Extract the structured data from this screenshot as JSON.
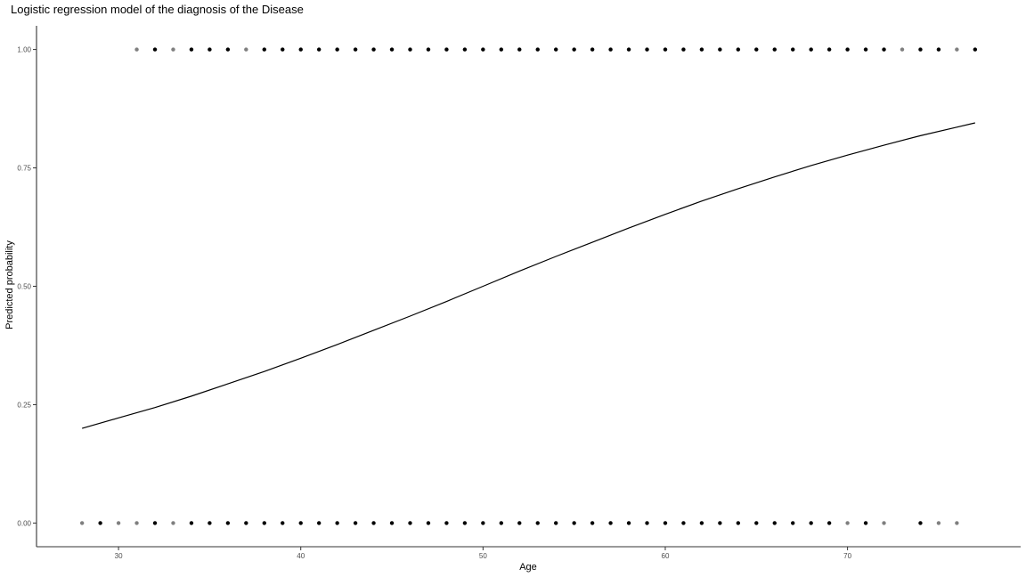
{
  "chart_data": {
    "type": "scatter",
    "title": "Logistic regression model of the diagnosis of the Disease",
    "xlabel": "Age",
    "ylabel": "Predicted probability",
    "xlim": [
      25.5,
      79.5
    ],
    "ylim": [
      -0.05,
      1.05
    ],
    "x_ticks": [
      30,
      40,
      50,
      60,
      70
    ],
    "y_ticks": [
      0,
      0.25,
      0.5,
      0.75,
      1.0
    ],
    "y_tick_labels": [
      "0.00",
      "0.25",
      "0.50",
      "0.75",
      "1.00"
    ],
    "grid": false,
    "legend": "none",
    "colors": {
      "points": "#000000",
      "curve": "#000000",
      "axis": "#333333"
    },
    "observed_points": {
      "y0": [
        {
          "x": 28,
          "alpha": 0.5
        },
        {
          "x": 29,
          "alpha": 1.0
        },
        {
          "x": 30,
          "alpha": 0.5
        },
        {
          "x": 31,
          "alpha": 0.5
        },
        {
          "x": 32,
          "alpha": 1.0
        },
        {
          "x": 33,
          "alpha": 0.5
        },
        {
          "x": 34,
          "alpha": 1.0
        },
        {
          "x": 35,
          "alpha": 1.0
        },
        {
          "x": 36,
          "alpha": 1.0
        },
        {
          "x": 37,
          "alpha": 1.0
        },
        {
          "x": 38,
          "alpha": 1.0
        },
        {
          "x": 39,
          "alpha": 1.0
        },
        {
          "x": 40,
          "alpha": 1.0
        },
        {
          "x": 41,
          "alpha": 1.0
        },
        {
          "x": 42,
          "alpha": 1.0
        },
        {
          "x": 43,
          "alpha": 1.0
        },
        {
          "x": 44,
          "alpha": 1.0
        },
        {
          "x": 45,
          "alpha": 1.0
        },
        {
          "x": 46,
          "alpha": 1.0
        },
        {
          "x": 47,
          "alpha": 1.0
        },
        {
          "x": 48,
          "alpha": 1.0
        },
        {
          "x": 49,
          "alpha": 1.0
        },
        {
          "x": 50,
          "alpha": 1.0
        },
        {
          "x": 51,
          "alpha": 1.0
        },
        {
          "x": 52,
          "alpha": 1.0
        },
        {
          "x": 53,
          "alpha": 1.0
        },
        {
          "x": 54,
          "alpha": 1.0
        },
        {
          "x": 55,
          "alpha": 1.0
        },
        {
          "x": 56,
          "alpha": 1.0
        },
        {
          "x": 57,
          "alpha": 1.0
        },
        {
          "x": 58,
          "alpha": 1.0
        },
        {
          "x": 59,
          "alpha": 1.0
        },
        {
          "x": 60,
          "alpha": 1.0
        },
        {
          "x": 61,
          "alpha": 1.0
        },
        {
          "x": 62,
          "alpha": 1.0
        },
        {
          "x": 63,
          "alpha": 1.0
        },
        {
          "x": 64,
          "alpha": 1.0
        },
        {
          "x": 65,
          "alpha": 1.0
        },
        {
          "x": 66,
          "alpha": 1.0
        },
        {
          "x": 67,
          "alpha": 1.0
        },
        {
          "x": 68,
          "alpha": 1.0
        },
        {
          "x": 69,
          "alpha": 1.0
        },
        {
          "x": 70,
          "alpha": 0.5
        },
        {
          "x": 71,
          "alpha": 1.0
        },
        {
          "x": 72,
          "alpha": 0.5
        },
        {
          "x": 74,
          "alpha": 1.0
        },
        {
          "x": 75,
          "alpha": 0.5
        },
        {
          "x": 76,
          "alpha": 0.5
        }
      ],
      "y1": [
        {
          "x": 31,
          "alpha": 0.5
        },
        {
          "x": 32,
          "alpha": 1.0
        },
        {
          "x": 33,
          "alpha": 0.5
        },
        {
          "x": 34,
          "alpha": 1.0
        },
        {
          "x": 35,
          "alpha": 1.0
        },
        {
          "x": 36,
          "alpha": 1.0
        },
        {
          "x": 37,
          "alpha": 0.5
        },
        {
          "x": 38,
          "alpha": 1.0
        },
        {
          "x": 39,
          "alpha": 1.0
        },
        {
          "x": 40,
          "alpha": 1.0
        },
        {
          "x": 41,
          "alpha": 1.0
        },
        {
          "x": 42,
          "alpha": 1.0
        },
        {
          "x": 43,
          "alpha": 1.0
        },
        {
          "x": 44,
          "alpha": 1.0
        },
        {
          "x": 45,
          "alpha": 1.0
        },
        {
          "x": 46,
          "alpha": 1.0
        },
        {
          "x": 47,
          "alpha": 1.0
        },
        {
          "x": 48,
          "alpha": 1.0
        },
        {
          "x": 49,
          "alpha": 1.0
        },
        {
          "x": 50,
          "alpha": 1.0
        },
        {
          "x": 51,
          "alpha": 1.0
        },
        {
          "x": 52,
          "alpha": 1.0
        },
        {
          "x": 53,
          "alpha": 1.0
        },
        {
          "x": 54,
          "alpha": 1.0
        },
        {
          "x": 55,
          "alpha": 1.0
        },
        {
          "x": 56,
          "alpha": 1.0
        },
        {
          "x": 57,
          "alpha": 1.0
        },
        {
          "x": 58,
          "alpha": 1.0
        },
        {
          "x": 59,
          "alpha": 1.0
        },
        {
          "x": 60,
          "alpha": 1.0
        },
        {
          "x": 61,
          "alpha": 1.0
        },
        {
          "x": 62,
          "alpha": 1.0
        },
        {
          "x": 63,
          "alpha": 1.0
        },
        {
          "x": 64,
          "alpha": 1.0
        },
        {
          "x": 65,
          "alpha": 1.0
        },
        {
          "x": 66,
          "alpha": 1.0
        },
        {
          "x": 67,
          "alpha": 1.0
        },
        {
          "x": 68,
          "alpha": 1.0
        },
        {
          "x": 69,
          "alpha": 1.0
        },
        {
          "x": 70,
          "alpha": 1.0
        },
        {
          "x": 71,
          "alpha": 1.0
        },
        {
          "x": 72,
          "alpha": 1.0
        },
        {
          "x": 73,
          "alpha": 0.5
        },
        {
          "x": 74,
          "alpha": 1.0
        },
        {
          "x": 75,
          "alpha": 1.0
        },
        {
          "x": 76,
          "alpha": 0.5
        },
        {
          "x": 77,
          "alpha": 1.0
        }
      ]
    },
    "fitted_curve": {
      "x": [
        28,
        30,
        32,
        34,
        36,
        38,
        40,
        42,
        44,
        46,
        48,
        50,
        52,
        54,
        56,
        58,
        60,
        62,
        64,
        66,
        68,
        70,
        72,
        74,
        76,
        77
      ],
      "y": [
        0.2,
        0.222,
        0.244,
        0.268,
        0.294,
        0.32,
        0.348,
        0.377,
        0.407,
        0.437,
        0.468,
        0.5,
        0.532,
        0.563,
        0.593,
        0.623,
        0.652,
        0.68,
        0.706,
        0.731,
        0.755,
        0.777,
        0.798,
        0.818,
        0.836,
        0.845
      ]
    }
  }
}
